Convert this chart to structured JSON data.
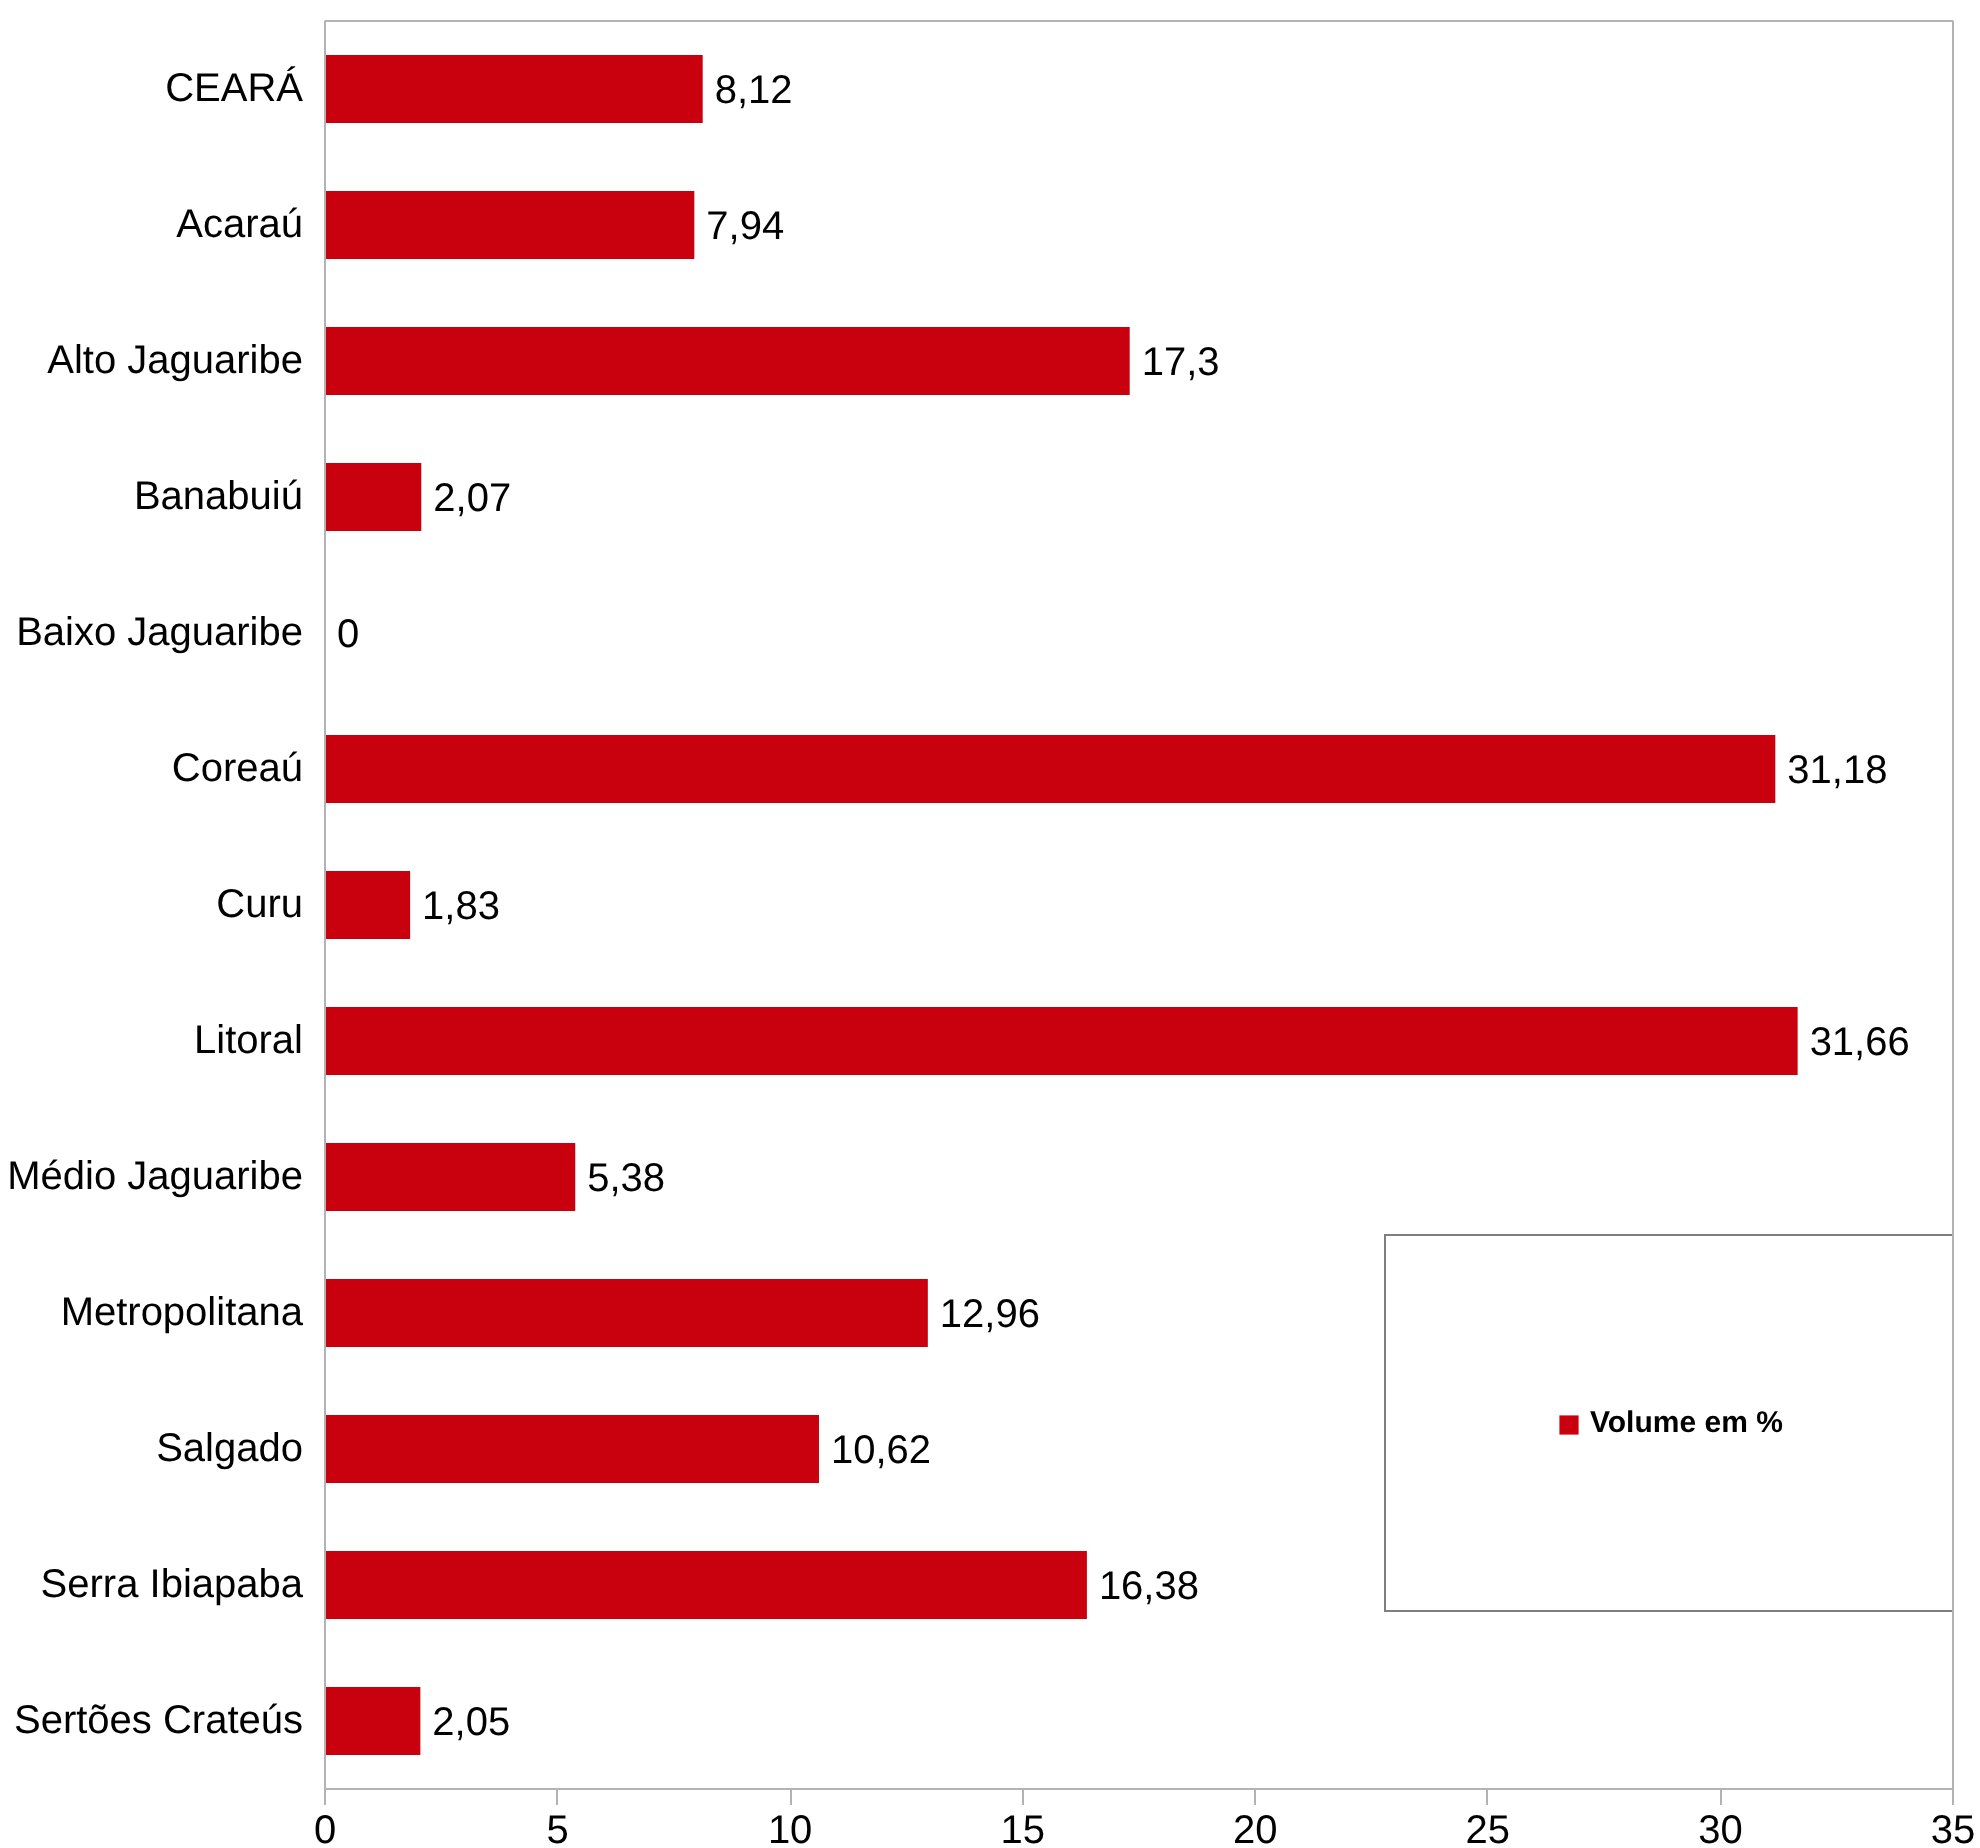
{
  "chart_data": {
    "type": "bar",
    "orientation": "horizontal",
    "categories": [
      "CEARÁ",
      "Acaraú",
      "Alto Jaguaribe",
      "Banabuiú",
      "Baixo Jaguaribe",
      "Coreaú",
      "Curu",
      "Litoral",
      "Médio Jaguaribe",
      "Metropolitana",
      "Salgado",
      "Serra Ibiapaba",
      "Sertões Crateús"
    ],
    "series": [
      {
        "name": "Volume em %",
        "color": "#c9000d",
        "values": [
          8.12,
          7.94,
          17.3,
          2.07,
          0,
          31.18,
          1.83,
          31.66,
          5.38,
          12.96,
          10.62,
          16.38,
          2.05
        ],
        "value_labels": [
          "8,12",
          "7,94",
          "17,3",
          "2,07",
          "0",
          "31,18",
          "1,83",
          "31,66",
          "5,38",
          "12,96",
          "10,62",
          "16,38",
          "2,05"
        ]
      }
    ],
    "xlim": [
      0,
      35
    ],
    "xticks": [
      0,
      5,
      10,
      15,
      20,
      25,
      30,
      35
    ],
    "grid": false,
    "legend": "right"
  }
}
